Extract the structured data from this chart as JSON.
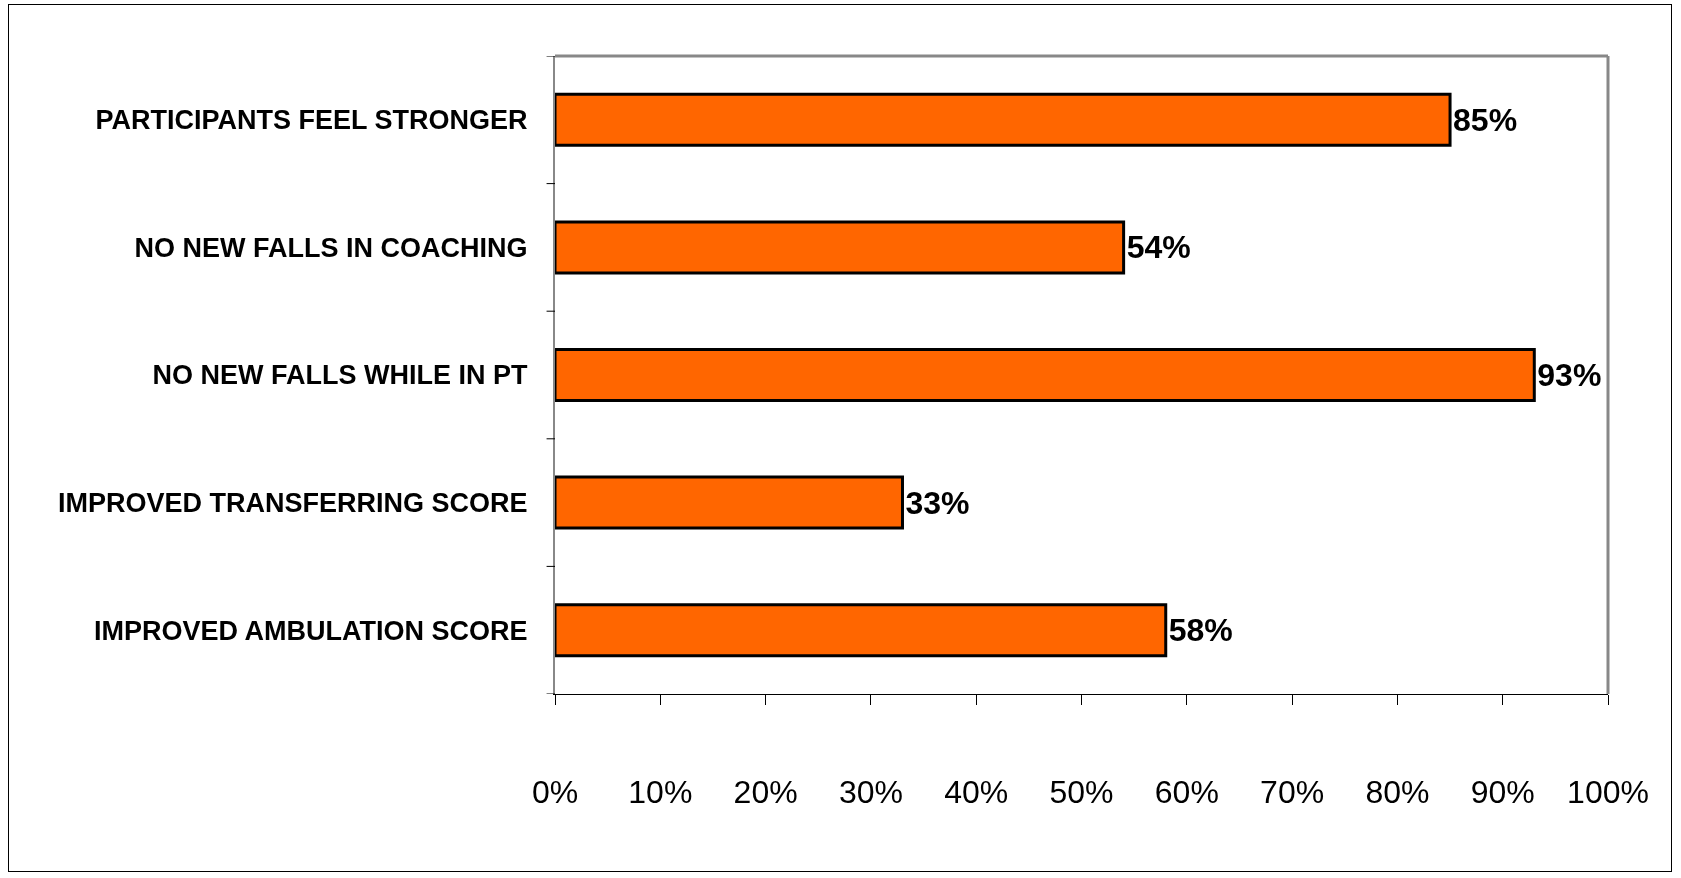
{
  "chart_data": {
    "type": "bar",
    "orientation": "horizontal",
    "categories": [
      "PARTICIPANTS FEEL STRONGER",
      "NO NEW FALLS IN COACHING",
      "NO NEW FALLS WHILE IN PT",
      "IMPROVED TRANSFERRING SCORE",
      "IMPROVED AMBULATION SCORE"
    ],
    "values": [
      85,
      54,
      93,
      33,
      58
    ],
    "value_labels": [
      "85%",
      "54%",
      "93%",
      "33%",
      "58%"
    ],
    "color": "#ff6600",
    "xlim": [
      0,
      100
    ],
    "xticks": [
      {
        "value": 0,
        "label": "0%"
      },
      {
        "value": 10,
        "label": "10%"
      },
      {
        "value": 20,
        "label": "20%"
      },
      {
        "value": 30,
        "label": "30%"
      },
      {
        "value": 40,
        "label": "40%"
      },
      {
        "value": 50,
        "label": "50%"
      },
      {
        "value": 60,
        "label": "60%"
      },
      {
        "value": 70,
        "label": "70%"
      },
      {
        "value": 80,
        "label": "80%"
      },
      {
        "value": 90,
        "label": "90%"
      },
      {
        "value": 100,
        "label": "100%"
      }
    ],
    "grid": false
  }
}
